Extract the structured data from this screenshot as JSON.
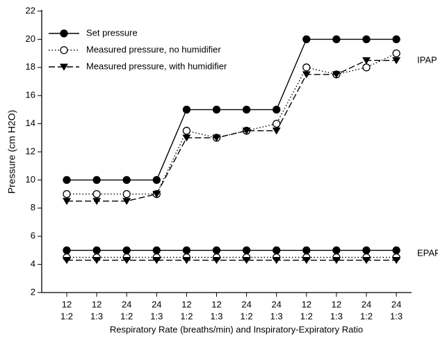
{
  "chart_data": {
    "type": "line",
    "x_label": "Respiratory Rate (breaths/min) and Inspiratory-Expiratory Ratio",
    "y_label": "Pressure (cm H2O)",
    "categories": [
      [
        "12",
        "1:2"
      ],
      [
        "12",
        "1:3"
      ],
      [
        "24",
        "1:2"
      ],
      [
        "24",
        "1:3"
      ],
      [
        "12",
        "1:2"
      ],
      [
        "12",
        "1:3"
      ],
      [
        "24",
        "1:2"
      ],
      [
        "24",
        "1:3"
      ],
      [
        "12",
        "1:2"
      ],
      [
        "12",
        "1:3"
      ],
      [
        "24",
        "1:2"
      ],
      [
        "24",
        "1:3"
      ]
    ],
    "series": [
      {
        "name": "Set pressure",
        "color": "#000000",
        "marker": "filled-circle",
        "dash": "none",
        "values": [
          10,
          10,
          10,
          10,
          15,
          15,
          15,
          15,
          20,
          20,
          20,
          20
        ],
        "epap_values": [
          5,
          5,
          5,
          5,
          5,
          5,
          5,
          5,
          5,
          5,
          5,
          5
        ]
      },
      {
        "name": "Measured pressure, no humidifier",
        "color": "#000000",
        "marker": "open-circle",
        "dash": "1.5,3",
        "values": [
          9,
          9,
          9,
          9,
          13.5,
          13,
          13.5,
          14,
          18,
          17.5,
          18,
          19
        ],
        "epap_values": [
          4.5,
          4.5,
          4.5,
          4.5,
          4.5,
          4.5,
          4.5,
          4.5,
          4.5,
          4.5,
          4.5,
          4.5
        ]
      },
      {
        "name": "Measured pressure, with humidifier",
        "color": "#000000",
        "marker": "triangle-down",
        "dash": "9,4",
        "values": [
          8.5,
          8.5,
          8.5,
          9,
          13,
          13,
          13.5,
          13.5,
          17.5,
          17.5,
          18.5,
          18.5
        ],
        "epap_values": [
          4.3,
          4.3,
          4.3,
          4.3,
          4.3,
          4.3,
          4.3,
          4.3,
          4.3,
          4.3,
          4.3,
          4.3
        ]
      }
    ],
    "annotations": [
      "IPAP",
      "EPAP"
    ],
    "ylim": [
      2,
      22
    ],
    "yticks": [
      2,
      4,
      6,
      8,
      10,
      12,
      14,
      16,
      18,
      20,
      22
    ],
    "grid": false
  }
}
